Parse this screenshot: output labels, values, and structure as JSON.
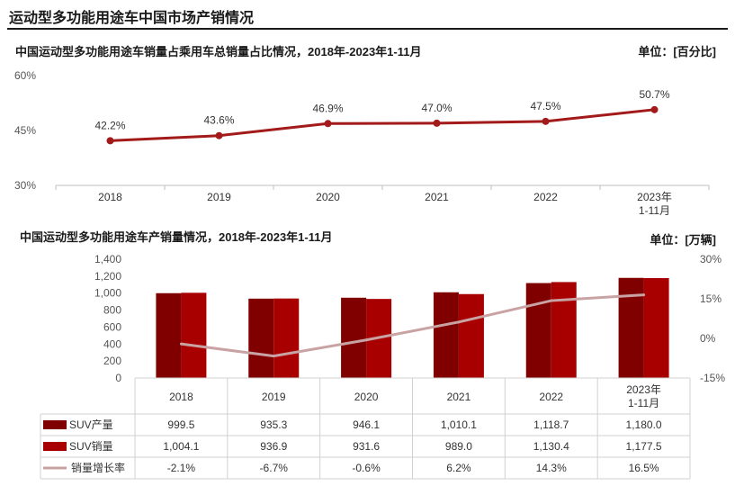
{
  "page": {
    "title": "运动型多功能用途车中国市场产销情况"
  },
  "chart_top": {
    "title": "中国运动型多功能用途车销量占乘用车总销量占比情况，2018年-2023年1-11月",
    "unit": "单位：[百分比]"
  },
  "chart_bottom": {
    "title": "中国运动型多功能用途车产销量情况，2018年-2023年1-11月",
    "unit": "单位：[万辆]"
  },
  "colors": {
    "line_top": "#a31a1a",
    "production": "#800000",
    "sales": "#a80000",
    "growth_line": "#c9a3a3"
  },
  "chart_data": [
    {
      "type": "line",
      "categories": [
        "2018",
        "2019",
        "2020",
        "2021",
        "2022",
        "2023年 1-11月"
      ],
      "series": [
        {
          "name": "",
          "values": [
            42.2,
            43.6,
            46.9,
            47.0,
            47.5,
            50.7
          ],
          "labels": [
            "42.2%",
            "43.6%",
            "46.9%",
            "47.0%",
            "47.5%",
            "50.7%"
          ]
        }
      ],
      "ylim": [
        30,
        60
      ],
      "yticks": [
        "30%",
        "45%",
        "60%"
      ],
      "grid": false
    },
    {
      "type": "bar",
      "categories": [
        "2018",
        "2019",
        "2020",
        "2021",
        "2022",
        "2023年 1-11月"
      ],
      "series": [
        {
          "name": "SUV产量",
          "type": "bar",
          "axis": "left",
          "values": [
            999.5,
            935.3,
            946.1,
            1010.1,
            1118.7,
            1180.0
          ],
          "labels": [
            "999.5",
            "935.3",
            "946.1",
            "1,010.1",
            "1,118.7",
            "1,180.0"
          ]
        },
        {
          "name": "SUV销量",
          "type": "bar",
          "axis": "left",
          "values": [
            1004.1,
            936.9,
            931.6,
            989.0,
            1130.4,
            1177.5
          ],
          "labels": [
            "1,004.1",
            "936.9",
            "931.6",
            "989.0",
            "1,130.4",
            "1,177.5"
          ]
        },
        {
          "name": "销量增长率",
          "type": "line",
          "axis": "right",
          "values": [
            -2.1,
            -6.7,
            -0.6,
            6.2,
            14.3,
            16.5
          ],
          "labels": [
            "-2.1%",
            "-6.7%",
            "-0.6%",
            "6.2%",
            "14.3%",
            "16.5%"
          ]
        }
      ],
      "ylim": [
        0,
        1400
      ],
      "yticks": [
        "0",
        "200",
        "400",
        "600",
        "800",
        "1,000",
        "1,200",
        "1,400"
      ],
      "y2lim": [
        -15,
        30
      ],
      "y2ticks": [
        "-15%",
        "0%",
        "15%",
        "30%"
      ],
      "legend": "data-table-left",
      "grid": false
    }
  ]
}
